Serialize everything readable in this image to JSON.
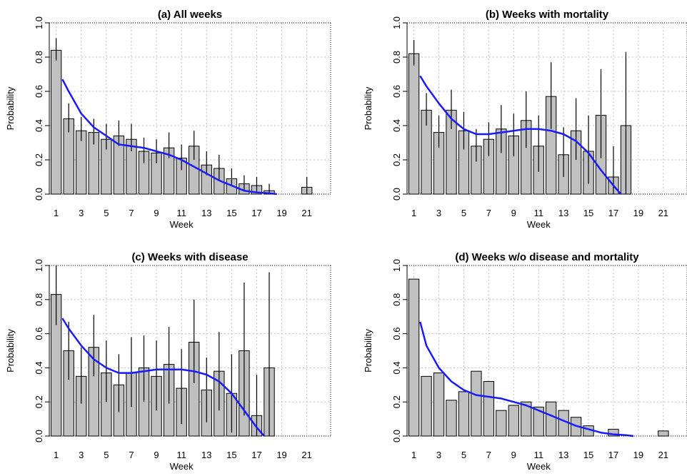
{
  "colors": {
    "bar": "#c0c0c0",
    "bar_edge": "#000000",
    "smooth": "#1a1aff",
    "error": "#000000",
    "grid": "#bfbfbf"
  },
  "chart_data": [
    {
      "type": "bar",
      "title": "(a) All weeks",
      "xlabel": "Week",
      "ylabel": "Probability",
      "ylim": [
        0,
        1
      ],
      "yticks": [
        "0.0",
        "0.2",
        "0.4",
        "0.6",
        "0.8",
        "1.0"
      ],
      "xticks": [
        "1",
        "3",
        "5",
        "7",
        "9",
        "11",
        "13",
        "15",
        "17",
        "19",
        "21"
      ],
      "grid": true,
      "weeks": [
        1,
        2,
        3,
        4,
        5,
        6,
        7,
        8,
        9,
        10,
        11,
        12,
        13,
        14,
        15,
        16,
        17,
        18,
        19,
        20,
        21
      ],
      "values": [
        0.84,
        0.44,
        0.37,
        0.36,
        0.32,
        0.34,
        0.32,
        0.25,
        0.24,
        0.27,
        0.21,
        0.28,
        0.17,
        0.15,
        0.09,
        0.06,
        0.05,
        0.02,
        0,
        0,
        0.04
      ],
      "err_low": [
        0.78,
        0.36,
        0.31,
        0.29,
        0.26,
        0.28,
        0.25,
        0.18,
        0.18,
        0.21,
        0.14,
        0.2,
        0.11,
        0.08,
        0.05,
        0.02,
        0.01,
        0.0,
        0,
        0,
        0.0
      ],
      "err_high": [
        0.91,
        0.53,
        0.45,
        0.44,
        0.41,
        0.43,
        0.41,
        0.33,
        0.32,
        0.36,
        0.29,
        0.37,
        0.25,
        0.23,
        0.15,
        0.11,
        0.1,
        0.06,
        0,
        0,
        0.1
      ],
      "smooth_curve": {
        "x": [
          1.5,
          2,
          3,
          4,
          5,
          6,
          7,
          8,
          9,
          10,
          11,
          12,
          13,
          14,
          15,
          16,
          17,
          18,
          18.6
        ],
        "y": [
          0.67,
          0.6,
          0.47,
          0.39,
          0.34,
          0.29,
          0.28,
          0.27,
          0.25,
          0.23,
          0.2,
          0.16,
          0.12,
          0.08,
          0.05,
          0.02,
          0.01,
          0.005,
          0.0
        ]
      }
    },
    {
      "type": "bar",
      "title": "(b) Weeks with mortality",
      "xlabel": "Week",
      "ylabel": "Probability",
      "ylim": [
        0,
        1
      ],
      "yticks": [
        "0.0",
        "0.2",
        "0.4",
        "0.6",
        "0.8",
        "1.0"
      ],
      "xticks": [
        "1",
        "3",
        "5",
        "7",
        "9",
        "11",
        "13",
        "15",
        "17",
        "19",
        "21"
      ],
      "grid": true,
      "weeks": [
        1,
        2,
        3,
        4,
        5,
        6,
        7,
        8,
        9,
        10,
        11,
        12,
        13,
        14,
        15,
        16,
        17,
        18,
        19,
        20,
        21
      ],
      "values": [
        0.82,
        0.49,
        0.36,
        0.49,
        0.37,
        0.28,
        0.32,
        0.38,
        0.34,
        0.43,
        0.28,
        0.57,
        0.23,
        0.37,
        0.25,
        0.46,
        0.1,
        0.4,
        0,
        0,
        0
      ],
      "err_low": [
        0.75,
        0.4,
        0.27,
        0.38,
        0.26,
        0.19,
        0.22,
        0.24,
        0.22,
        0.27,
        0.13,
        0.38,
        0.1,
        0.2,
        0.06,
        0.21,
        0.0,
        0.0,
        0,
        0,
        0
      ],
      "err_high": [
        0.9,
        0.59,
        0.46,
        0.61,
        0.48,
        0.38,
        0.42,
        0.52,
        0.47,
        0.6,
        0.46,
        0.77,
        0.39,
        0.56,
        0.46,
        0.73,
        0.28,
        0.83,
        0,
        0,
        0
      ],
      "smooth_curve": {
        "x": [
          1.5,
          2,
          3,
          4,
          5,
          6,
          7,
          8,
          9,
          10,
          11,
          12,
          13,
          14,
          15,
          16,
          17,
          17.6
        ],
        "y": [
          0.69,
          0.63,
          0.53,
          0.44,
          0.38,
          0.35,
          0.35,
          0.36,
          0.37,
          0.38,
          0.38,
          0.37,
          0.35,
          0.31,
          0.24,
          0.14,
          0.05,
          0.0
        ]
      }
    },
    {
      "type": "bar",
      "title": "(c) Weeks with disease",
      "xlabel": "Week",
      "ylabel": "Probability",
      "ylim": [
        0,
        1
      ],
      "yticks": [
        "0.0",
        "0.2",
        "0.4",
        "0.6",
        "0.8",
        "1.0"
      ],
      "xticks": [
        "1",
        "3",
        "5",
        "7",
        "9",
        "11",
        "13",
        "15",
        "17",
        "19",
        "21"
      ],
      "grid": true,
      "weeks": [
        1,
        2,
        3,
        4,
        5,
        6,
        7,
        8,
        9,
        10,
        11,
        12,
        13,
        14,
        15,
        16,
        17,
        18,
        19,
        20,
        21
      ],
      "values": [
        0.83,
        0.5,
        0.35,
        0.52,
        0.37,
        0.3,
        0.37,
        0.4,
        0.35,
        0.42,
        0.28,
        0.55,
        0.27,
        0.38,
        0.25,
        0.5,
        0.12,
        0.4,
        0,
        0,
        0
      ],
      "err_low": [
        0.65,
        0.33,
        0.19,
        0.35,
        0.2,
        0.14,
        0.17,
        0.2,
        0.15,
        0.19,
        0.07,
        0.31,
        0.08,
        0.15,
        0.02,
        0.12,
        0.0,
        0.0,
        0,
        0,
        0
      ],
      "err_high": [
        1.0,
        0.67,
        0.52,
        0.71,
        0.56,
        0.48,
        0.58,
        0.59,
        0.56,
        0.64,
        0.51,
        0.8,
        0.46,
        0.61,
        0.48,
        0.9,
        0.36,
        0.96,
        0,
        0,
        0
      ],
      "smooth_curve": {
        "x": [
          1.5,
          2,
          3,
          4,
          5,
          6,
          7,
          8,
          9,
          10,
          11,
          12,
          13,
          14,
          15,
          16,
          17,
          17.6
        ],
        "y": [
          0.69,
          0.63,
          0.53,
          0.45,
          0.4,
          0.37,
          0.37,
          0.38,
          0.39,
          0.39,
          0.39,
          0.38,
          0.36,
          0.32,
          0.25,
          0.15,
          0.05,
          0.0
        ]
      }
    },
    {
      "type": "bar",
      "title": "(d) Weeks w/o disease and mortality",
      "xlabel": "Week",
      "ylabel": "Probability",
      "ylim": [
        0,
        1
      ],
      "yticks": [
        "0.0",
        "0.2",
        "0.4",
        "0.6",
        "0.8",
        "1.0"
      ],
      "xticks": [
        "1",
        "3",
        "5",
        "7",
        "9",
        "11",
        "13",
        "15",
        "17",
        "19",
        "21"
      ],
      "grid": true,
      "weeks": [
        1,
        2,
        3,
        4,
        5,
        6,
        7,
        8,
        9,
        10,
        11,
        12,
        13,
        14,
        15,
        16,
        17,
        18,
        19,
        20,
        21
      ],
      "values": [
        0.92,
        0.35,
        0.37,
        0.21,
        0.26,
        0.38,
        0.32,
        0.15,
        0.18,
        0.2,
        0.17,
        0.2,
        0.15,
        0.11,
        0.06,
        0,
        0.04,
        0,
        0,
        0,
        0.03
      ],
      "err_low": [],
      "err_high": [],
      "smooth_curve": {
        "x": [
          1.5,
          2,
          3,
          4,
          5,
          6,
          7,
          8,
          9,
          10,
          11,
          12,
          13,
          14,
          15,
          16,
          17,
          18,
          18.6
        ],
        "y": [
          0.67,
          0.53,
          0.4,
          0.32,
          0.27,
          0.24,
          0.23,
          0.22,
          0.2,
          0.18,
          0.15,
          0.12,
          0.09,
          0.06,
          0.04,
          0.02,
          0.01,
          0.005,
          0.0
        ]
      }
    }
  ]
}
